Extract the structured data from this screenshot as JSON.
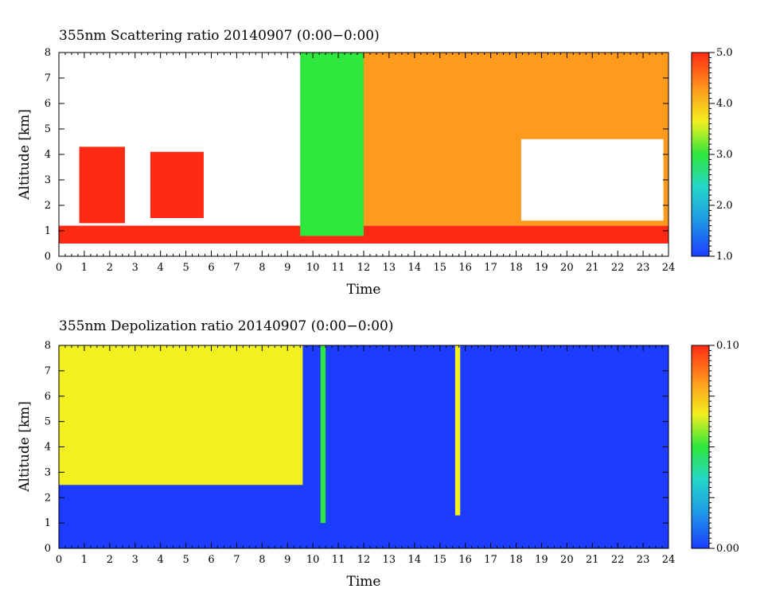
{
  "chart_data": [
    {
      "type": "heatmap",
      "title": "355nm Scattering ratio  20140907 (0:00−0:00)",
      "xlabel": "Time",
      "ylabel": "Altitude [km]",
      "xlim": [
        0,
        24
      ],
      "ylim": [
        0,
        8
      ],
      "xticks": [
        "0",
        "1",
        "2",
        "3",
        "4",
        "5",
        "6",
        "7",
        "8",
        "9",
        "10",
        "11",
        "12",
        "13",
        "14",
        "15",
        "16",
        "17",
        "18",
        "19",
        "20",
        "21",
        "22",
        "23",
        "24"
      ],
      "yticks": [
        "0",
        "1",
        "2",
        "3",
        "4",
        "5",
        "6",
        "7",
        "8"
      ],
      "colorbar": {
        "min": 1.0,
        "max": 5.0,
        "labels": [
          "1.0",
          "2.0",
          "3.0",
          "4.0",
          "5.0"
        ]
      },
      "missing_color": "#ffffff",
      "features": [
        {
          "desc": "low-altitude aerosol layer",
          "t": [
            0,
            24
          ],
          "alt": [
            0.5,
            1.2
          ],
          "value": 4.6
        },
        {
          "desc": "clear-sky aerosol fill",
          "t": [
            12,
            24
          ],
          "alt": [
            1.2,
            8
          ],
          "value": 4.3
        },
        {
          "desc": "cloud gap (no data)",
          "t": [
            18.2,
            23.8
          ],
          "alt": [
            1.4,
            4.6
          ],
          "value": null
        },
        {
          "desc": "cloud layer",
          "t": [
            0.8,
            2.6
          ],
          "alt": [
            1.3,
            4.3
          ],
          "value": 4.8
        },
        {
          "desc": "cloud layer",
          "t": [
            3.6,
            5.7
          ],
          "alt": [
            1.5,
            4.1
          ],
          "value": 4.5
        },
        {
          "desc": "cloud layer",
          "t": [
            9.5,
            12
          ],
          "alt": [
            0.8,
            8
          ],
          "value": 3.0
        }
      ]
    },
    {
      "type": "heatmap",
      "title": "355nm Depolization ratio  20140907 (0:00−0:00)",
      "xlabel": "Time",
      "ylabel": "Altitude [km]",
      "xlim": [
        0,
        24
      ],
      "ylim": [
        0,
        8
      ],
      "xticks": [
        "0",
        "1",
        "2",
        "3",
        "4",
        "5",
        "6",
        "7",
        "8",
        "9",
        "10",
        "11",
        "12",
        "13",
        "14",
        "15",
        "16",
        "17",
        "18",
        "19",
        "20",
        "21",
        "22",
        "23",
        "24"
      ],
      "yticks": [
        "0",
        "1",
        "2",
        "3",
        "4",
        "5",
        "6",
        "7",
        "8"
      ],
      "colorbar": {
        "min": 0.0,
        "max": 0.1,
        "labels": [
          "0.00",
          "0.10"
        ]
      },
      "missing_color": "#ffffff",
      "features": [
        {
          "desc": "background",
          "t": [
            0,
            24
          ],
          "alt": [
            0,
            8
          ],
          "value": 0.01
        },
        {
          "desc": "noisy high depolarization region",
          "t": [
            0,
            9.6
          ],
          "alt": [
            2.5,
            8
          ],
          "value": 0.06
        },
        {
          "desc": "cloud streaks",
          "t": [
            10.3,
            10.5
          ],
          "alt": [
            1.0,
            8
          ],
          "value": 0.05
        },
        {
          "desc": "cloud streaks",
          "t": [
            15.6,
            15.8
          ],
          "alt": [
            1.3,
            8
          ],
          "value": 0.06
        }
      ]
    }
  ],
  "colors": {
    "scale": [
      "#1c3cff",
      "#1e9be6",
      "#26d7c8",
      "#2ee63c",
      "#f2f020",
      "#ff9a1c",
      "#ff2a14"
    ],
    "missing": "#ffffff"
  }
}
